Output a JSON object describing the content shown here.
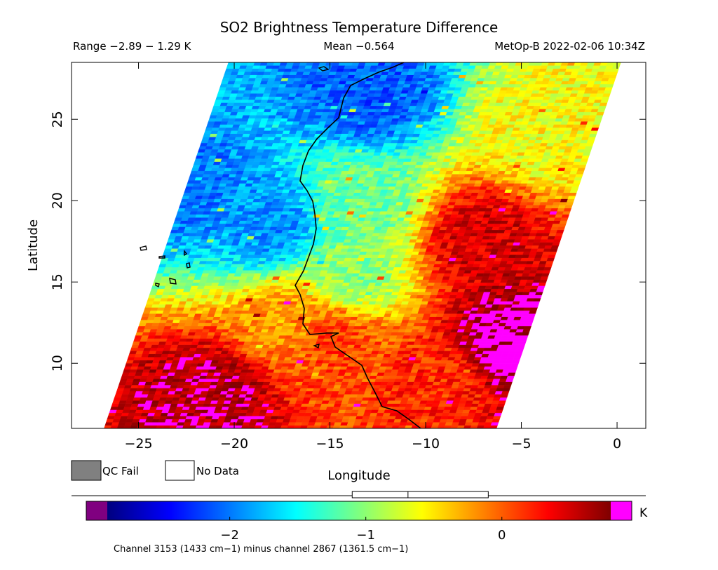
{
  "chart_data": {
    "type": "heatmap",
    "title": "SO2 Brightness Temperature Difference",
    "stats": {
      "range_text": "Range −2.89 − 1.29 K",
      "mean_text": "Mean −0.564",
      "satellite_time_text": "MetOp-B 2022-02-06 10:34Z"
    },
    "xlabel": "Longitude",
    "ylabel": "Latitude",
    "xlim": [
      -28.5,
      1.5
    ],
    "ylim": [
      6.0,
      28.5
    ],
    "x_ticks": [
      -25,
      -20,
      -15,
      -10,
      -5,
      0
    ],
    "x_tick_labels": [
      "−25",
      "−20",
      "−15",
      "−10",
      "−5",
      "0"
    ],
    "y_ticks": [
      10,
      15,
      20,
      25
    ],
    "y_tick_labels": [
      "10",
      "15",
      "20",
      "25"
    ],
    "swath_corners": {
      "bottom_left": [
        -26.8,
        6.0
      ],
      "bottom_right": [
        -6.3,
        6.0
      ],
      "top_left": [
        -20.3,
        28.5
      ],
      "top_right": [
        0.2,
        28.5
      ]
    },
    "value_range": [
      -2.89,
      1.29
    ],
    "mean": -0.564,
    "field_samples": [
      {
        "lon": -22.5,
        "lat": 21.0,
        "value": -2.0
      },
      {
        "lon": -18.0,
        "lat": 18.5,
        "value": -1.9
      },
      {
        "lon": -13.0,
        "lat": 26.5,
        "value": -2.1
      },
      {
        "lon": -13.5,
        "lat": 20.0,
        "value": -1.1
      },
      {
        "lon": -14.0,
        "lat": 15.5,
        "value": -1.0
      },
      {
        "lon": -7.0,
        "lat": 17.5,
        "value": 0.5
      },
      {
        "lon": -5.5,
        "lat": 11.0,
        "value": 1.0
      },
      {
        "lon": -21.0,
        "lat": 8.0,
        "value": 0.7
      },
      {
        "lon": -15.0,
        "lat": 11.5,
        "value": 0.1
      },
      {
        "lon": -9.0,
        "lat": 9.0,
        "value": 0.2
      },
      {
        "lon": -17.0,
        "lat": 12.5,
        "value": -0.2
      },
      {
        "lon": -4.0,
        "lat": 24.0,
        "value": -0.6
      }
    ],
    "legend": {
      "qc_fail_label": "QC Fail",
      "no_data_label": "No Data"
    },
    "colorbar": {
      "min": -2.9,
      "max": 0.8,
      "ticks": [
        -2,
        -1,
        0
      ],
      "tick_labels": [
        "−2",
        "−1",
        "0"
      ],
      "unit": "K",
      "underflow_color": "#800080",
      "overflow_color": "#ff00ff",
      "qc_fail_color": "#808080",
      "no_data_color": "#ffffff",
      "stops": [
        "#00007f",
        "#0000ff",
        "#007fff",
        "#00ffff",
        "#7fff7f",
        "#ffff00",
        "#ff7f00",
        "#ff0000",
        "#7f0000"
      ],
      "boxplot": {
        "min": -2.29,
        "q1": -1.1,
        "median": -0.69,
        "q3": -0.1,
        "max": 0.8
      }
    },
    "footnote": "Channel 3153 (1433 cm−1) minus channel 2867 (1361.5 cm−1)"
  }
}
